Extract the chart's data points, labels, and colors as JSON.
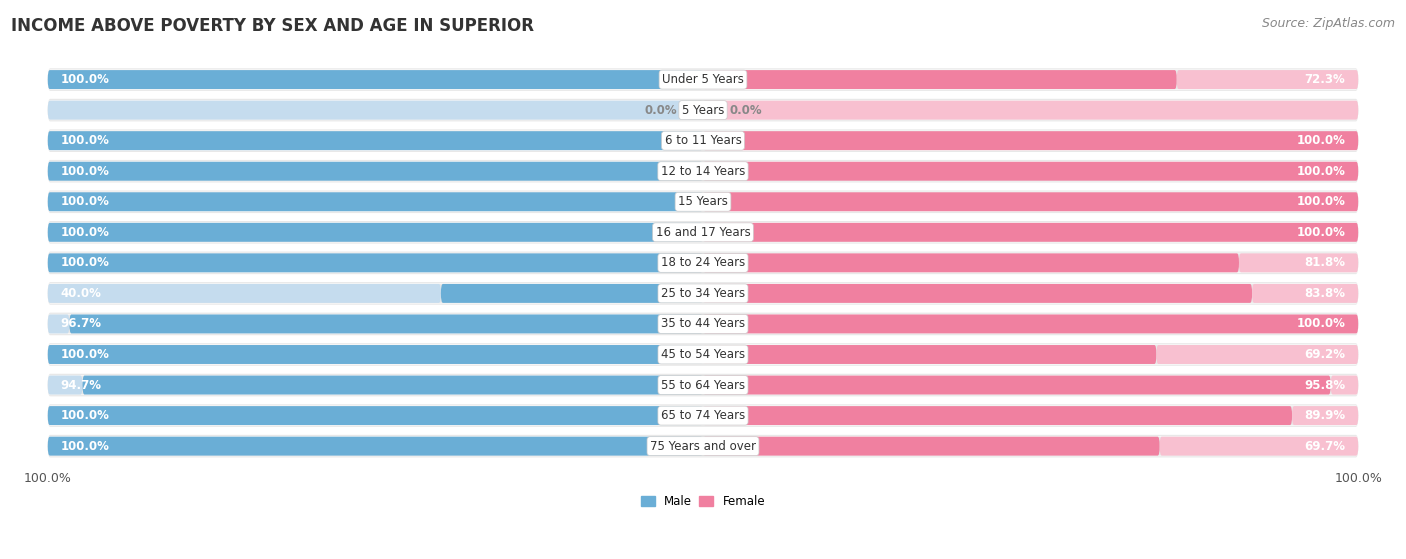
{
  "title": "INCOME ABOVE POVERTY BY SEX AND AGE IN SUPERIOR",
  "source": "Source: ZipAtlas.com",
  "categories": [
    "Under 5 Years",
    "5 Years",
    "6 to 11 Years",
    "12 to 14 Years",
    "15 Years",
    "16 and 17 Years",
    "18 to 24 Years",
    "25 to 34 Years",
    "35 to 44 Years",
    "45 to 54 Years",
    "55 to 64 Years",
    "65 to 74 Years",
    "75 Years and over"
  ],
  "male": [
    100.0,
    0.0,
    100.0,
    100.0,
    100.0,
    100.0,
    100.0,
    40.0,
    96.7,
    100.0,
    94.7,
    100.0,
    100.0
  ],
  "female": [
    72.3,
    0.0,
    100.0,
    100.0,
    100.0,
    100.0,
    81.8,
    83.8,
    100.0,
    69.2,
    95.8,
    89.9,
    69.7
  ],
  "male_color": "#6aaed6",
  "female_color": "#f080a0",
  "male_light_color": "#c5dcee",
  "female_light_color": "#f8c0d0",
  "male_label": "Male",
  "female_label": "Female",
  "row_bg": "#e8e8e8",
  "max_val": 100.0,
  "title_fontsize": 12,
  "label_fontsize": 8.5,
  "tick_fontsize": 9,
  "source_fontsize": 9,
  "value_label_fontsize": 8.5
}
